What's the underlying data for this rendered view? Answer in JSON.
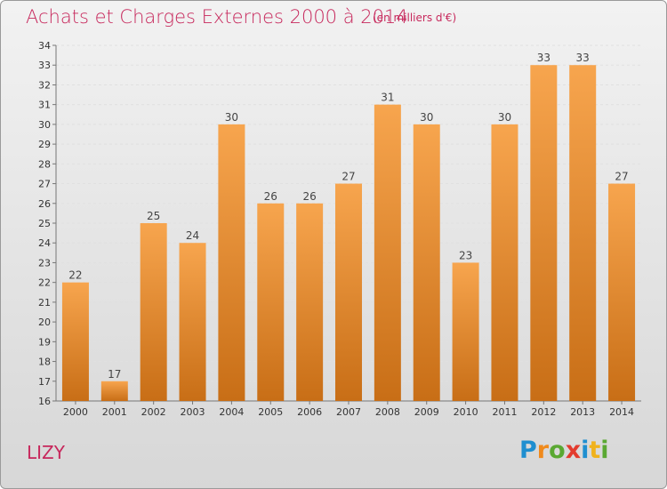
{
  "header": {
    "title": "Achats et Charges Externes 2000 à 2014",
    "subtitle": "(en milliers d'€)"
  },
  "footer": {
    "place": "LIZY",
    "logo_text": "Proxiti",
    "logo_letters": [
      {
        "char": "P",
        "color": "#1f8fd0"
      },
      {
        "char": "r",
        "color": "#f08a1c"
      },
      {
        "char": "o",
        "color": "#5aa832"
      },
      {
        "char": "x",
        "color": "#e33b2e"
      },
      {
        "char": "i",
        "color": "#1f8fd0"
      },
      {
        "char": "t",
        "color": "#f0b21c"
      },
      {
        "char": "i",
        "color": "#5aa832"
      }
    ]
  },
  "colors": {
    "accent": "#c7285c",
    "bar_top": "#f7a54e",
    "bar_bottom": "#c86e16"
  },
  "chart_data": {
    "type": "bar",
    "title": "Achats et Charges Externes 2000 à 2014",
    "subtitle": "(en milliers d'€)",
    "categories": [
      "2000",
      "2001",
      "2002",
      "2003",
      "2004",
      "2005",
      "2006",
      "2007",
      "2008",
      "2009",
      "2010",
      "2011",
      "2012",
      "2013",
      "2014"
    ],
    "values": [
      22,
      17,
      25,
      24,
      30,
      26,
      26,
      27,
      31,
      30,
      23,
      30,
      33,
      33,
      27
    ],
    "ylim": [
      16,
      34
    ],
    "yticks": [
      "16",
      "17",
      "18",
      "19",
      "20",
      "21",
      "22",
      "23",
      "24",
      "25",
      "26",
      "27",
      "28",
      "29",
      "30",
      "31",
      "32",
      "33",
      "34"
    ],
    "grid": true,
    "legend": "none"
  }
}
